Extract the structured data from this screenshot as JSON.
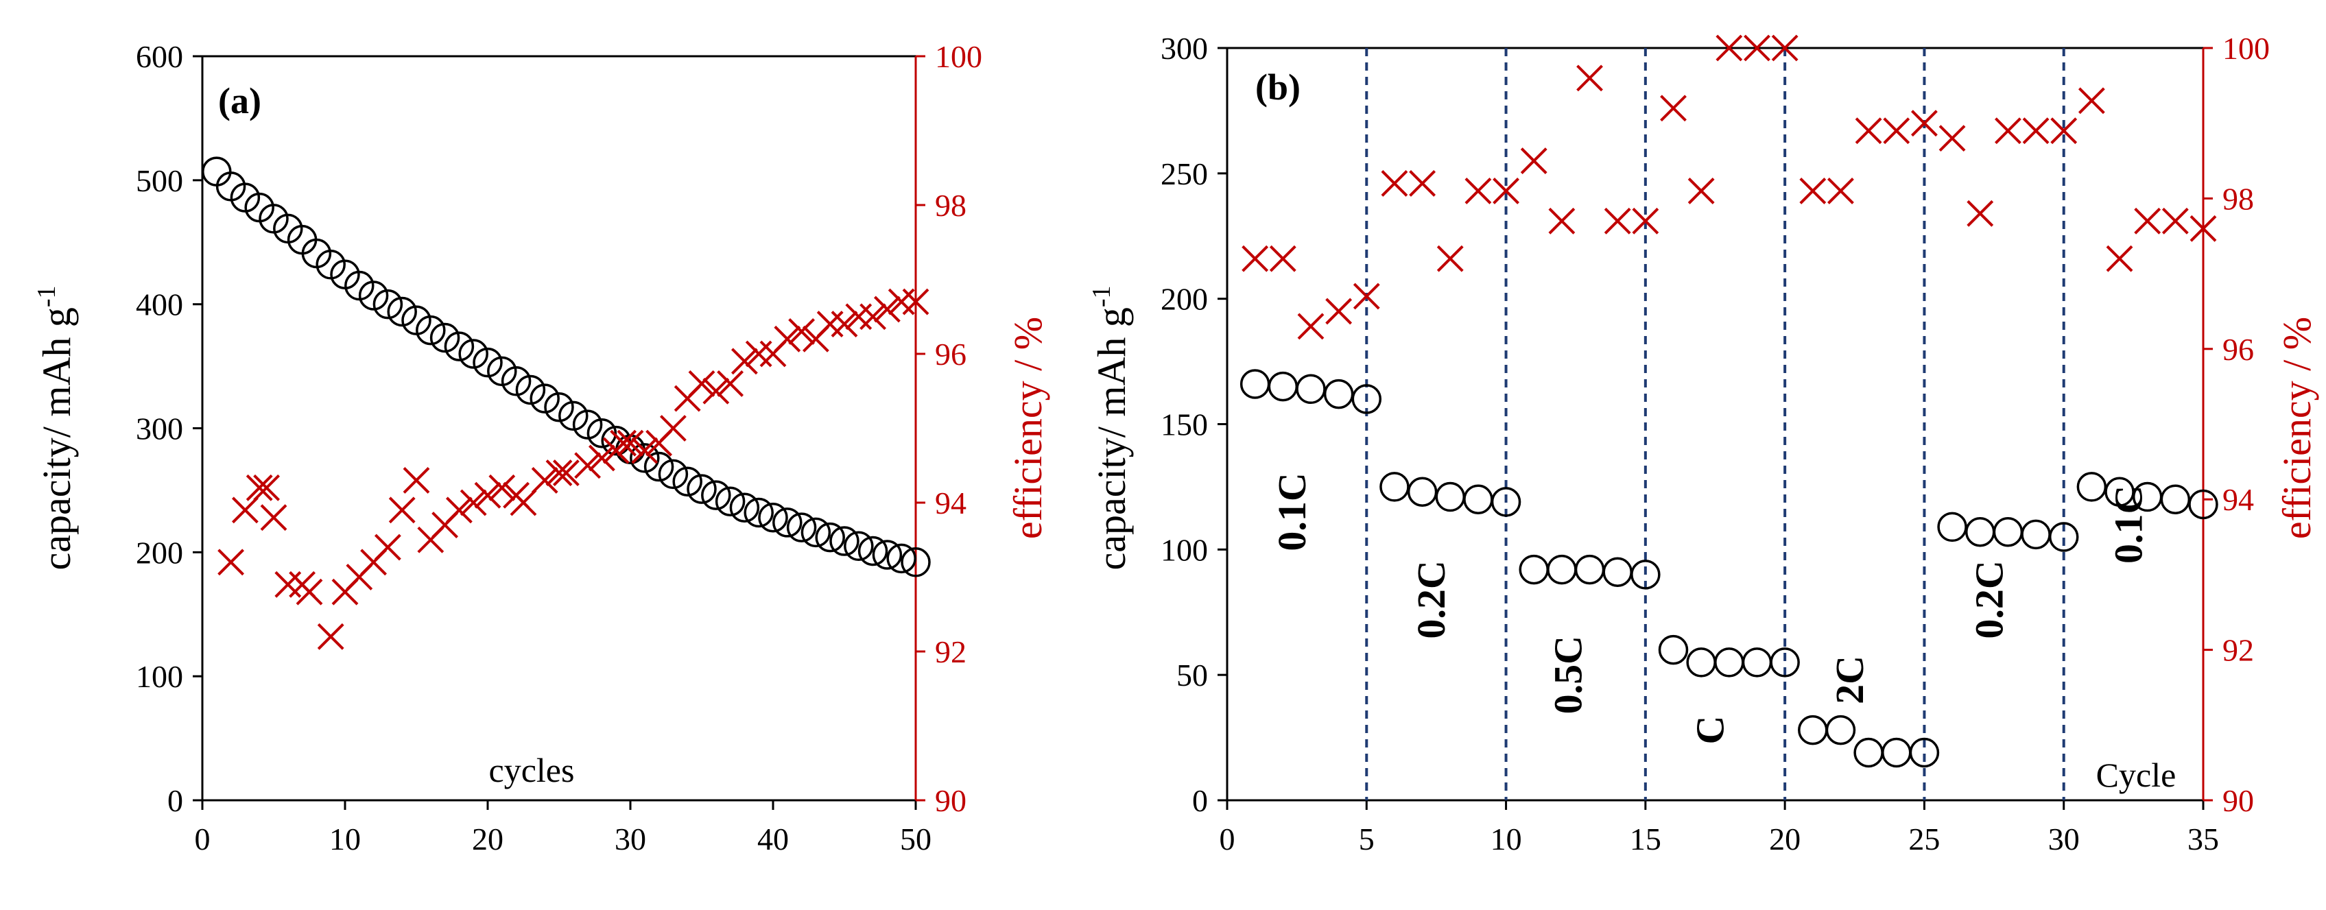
{
  "colors": {
    "capacity": "#000000",
    "efficiency": "#c00000",
    "divider": "#1f3b73"
  },
  "chart_data": [
    {
      "id": "a",
      "type": "scatter",
      "panel_label": "(a)",
      "xlabel": "cycles",
      "ylabel": "capacity/ mAh g",
      "ylabel_sup": "-1",
      "y2label": "efficiency / %",
      "xlim": [
        0,
        50
      ],
      "ylim": [
        0,
        600
      ],
      "y2lim": [
        90,
        100
      ],
      "x_ticks": [
        "0",
        "10",
        "20",
        "30",
        "40",
        "50"
      ],
      "y_ticks": [
        "0",
        "100",
        "200",
        "300",
        "400",
        "500",
        "600"
      ],
      "y2_ticks": [
        "90",
        "92",
        "94",
        "96",
        "98",
        "100"
      ],
      "series": [
        {
          "name": "capacity",
          "marker": "circle",
          "axis": "left",
          "x": [
            1,
            2,
            3,
            4,
            5,
            6,
            7,
            8,
            9,
            10,
            11,
            12,
            13,
            14,
            15,
            16,
            17,
            18,
            19,
            20,
            21,
            22,
            23,
            24,
            25,
            26,
            27,
            28,
            29,
            30,
            31,
            32,
            33,
            34,
            35,
            36,
            37,
            38,
            39,
            40,
            41,
            42,
            43,
            44,
            45,
            46,
            47,
            48,
            49,
            50
          ],
          "y": [
            507,
            495,
            486,
            478,
            469,
            461,
            452,
            441,
            432,
            424,
            415,
            407,
            400,
            394,
            387,
            379,
            373,
            366,
            360,
            353,
            346,
            338,
            331,
            324,
            317,
            310,
            303,
            296,
            290,
            283,
            276,
            269,
            263,
            257,
            251,
            246,
            241,
            236,
            232,
            228,
            224,
            220,
            216,
            212,
            209,
            205,
            201,
            198,
            195,
            192
          ]
        },
        {
          "name": "efficiency",
          "marker": "x",
          "axis": "right",
          "x": [
            2,
            3,
            4,
            4.5,
            5,
            6,
            7,
            7.5,
            9,
            10,
            11,
            12,
            13,
            14,
            15,
            16,
            17,
            18,
            19,
            20,
            21,
            22,
            22.5,
            24,
            25,
            25.5,
            27,
            28,
            29,
            29.5,
            30,
            31,
            32,
            33,
            34,
            35,
            36,
            37,
            38,
            39,
            40,
            41,
            42,
            43,
            44,
            45,
            46,
            47,
            48,
            49,
            50
          ],
          "y": [
            93.2,
            93.9,
            94.2,
            94.2,
            93.8,
            92.9,
            92.9,
            92.8,
            92.2,
            92.8,
            93.0,
            93.2,
            93.4,
            93.9,
            94.3,
            93.5,
            93.7,
            93.9,
            94.0,
            94.1,
            94.2,
            94.1,
            94.0,
            94.3,
            94.4,
            94.4,
            94.5,
            94.6,
            94.7,
            94.8,
            94.8,
            94.7,
            94.8,
            95.0,
            95.4,
            95.6,
            95.5,
            95.6,
            95.9,
            96.0,
            96.0,
            96.2,
            96.3,
            96.2,
            96.4,
            96.4,
            96.5,
            96.5,
            96.6,
            96.7,
            96.7
          ]
        }
      ]
    },
    {
      "id": "b",
      "type": "scatter",
      "panel_label": "(b)",
      "xlabel": "Cycle",
      "ylabel": "capacity/ mAh g",
      "ylabel_sup": "-1",
      "y2label": "efficiency / %",
      "xlim": [
        0,
        35
      ],
      "ylim": [
        0,
        300
      ],
      "y2lim": [
        90,
        100
      ],
      "x_ticks": [
        "0",
        "5",
        "10",
        "15",
        "20",
        "25",
        "30",
        "35"
      ],
      "y_ticks": [
        "0",
        "50",
        "100",
        "150",
        "200",
        "250",
        "300"
      ],
      "y2_ticks": [
        "90",
        "92",
        "94",
        "96",
        "98",
        "100"
      ],
      "rate_dividers": [
        5,
        10,
        15,
        20,
        25,
        30
      ],
      "rate_labels": [
        {
          "text": "0.1C",
          "x": 2.8,
          "y": 115
        },
        {
          "text": "0.2C",
          "x": 7.8,
          "y": 80
        },
        {
          "text": "0.5C",
          "x": 12.7,
          "y": 50
        },
        {
          "text": "C",
          "x": 17.8,
          "y": 28
        },
        {
          "text": "2C",
          "x": 22.8,
          "y": 48
        },
        {
          "text": "0.2C",
          "x": 27.8,
          "y": 80
        },
        {
          "text": "0.1C",
          "x": 32.8,
          "y": 110
        }
      ],
      "series": [
        {
          "name": "capacity",
          "marker": "circle",
          "axis": "left",
          "x": [
            1,
            2,
            3,
            4,
            5,
            6,
            7,
            8,
            9,
            10,
            11,
            12,
            13,
            14,
            15,
            16,
            17,
            18,
            19,
            20,
            21,
            22,
            23,
            24,
            25,
            26,
            27,
            28,
            29,
            30,
            31,
            32,
            33,
            34,
            35
          ],
          "y": [
            166,
            165,
            164,
            162,
            160,
            125,
            123,
            121,
            120,
            119,
            92,
            92,
            92,
            91,
            90,
            60,
            55,
            55,
            55,
            55,
            28,
            28,
            19,
            19,
            19,
            109,
            107,
            107,
            106,
            105,
            125,
            123,
            121,
            120,
            118
          ]
        },
        {
          "name": "efficiency",
          "marker": "x",
          "axis": "right",
          "x": [
            1,
            2,
            3,
            4,
            5,
            6,
            7,
            8,
            9,
            10,
            11,
            12,
            13,
            14,
            15,
            16,
            17,
            18,
            19,
            20,
            21,
            22,
            23,
            24,
            25,
            26,
            27,
            28,
            29,
            30,
            31,
            32,
            33,
            34,
            35
          ],
          "y": [
            97.2,
            97.2,
            96.3,
            96.5,
            96.7,
            98.2,
            98.2,
            97.2,
            98.1,
            98.1,
            98.5,
            97.7,
            99.6,
            97.7,
            97.7,
            99.2,
            98.1,
            100,
            100,
            100,
            98.1,
            98.1,
            98.9,
            98.9,
            99.0,
            98.8,
            97.8,
            98.9,
            98.9,
            98.9,
            99.3,
            97.2,
            97.7,
            97.7,
            97.6
          ]
        }
      ]
    }
  ]
}
